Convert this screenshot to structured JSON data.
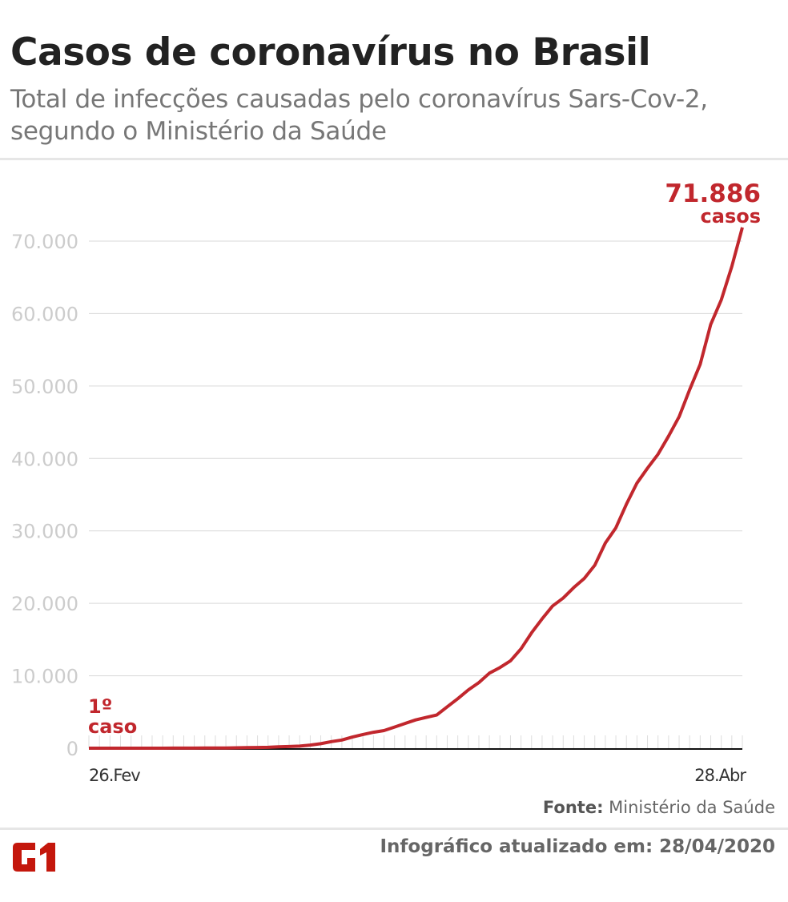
{
  "title": "Casos de coronavírus no Brasil",
  "subtitle": "Total de infecções causadas pelo coronavírus Sars-Cov-2, segundo o Ministério da Saúde",
  "footer": {
    "source_label": "Fonte:",
    "source": "Ministério da Saúde",
    "updated": "Infográfico atualizado em: 28/04/2020",
    "logo": "G1"
  },
  "colors": {
    "line": "#c1272d",
    "grid": "#d9d9d9",
    "axis_text": "#cccccc"
  },
  "chart_data": {
    "type": "line",
    "title": "Casos de coronavírus no Brasil",
    "x_start": "26.Fev",
    "x_end": "28.Abr",
    "x_tick_labels": [
      "26.Fev",
      "28.Abr"
    ],
    "ylim": [
      0,
      70000
    ],
    "y_ticks": [
      0,
      10000,
      20000,
      30000,
      40000,
      50000,
      60000,
      70000
    ],
    "y_tick_labels": [
      "0",
      "10.000",
      "20.000",
      "30.000",
      "40.000",
      "50.000",
      "60.000",
      "70.000"
    ],
    "grid": true,
    "annotations": {
      "first": [
        "1º",
        "caso"
      ],
      "last_value": "71.886",
      "last_unit": "casos"
    },
    "values": [
      1,
      1,
      1,
      2,
      2,
      2,
      2,
      3,
      8,
      13,
      19,
      25,
      25,
      34,
      52,
      77,
      98,
      121,
      200,
      234,
      291,
      428,
      621,
      904,
      1128,
      1546,
      1891,
      2201,
      2433,
      2915,
      3417,
      3904,
      4256,
      4579,
      5717,
      6836,
      8044,
      9056,
      10360,
      11130,
      12056,
      13717,
      15927,
      17857,
      19638,
      20727,
      22169,
      23430,
      25262,
      28320,
      30425,
      33682,
      36599,
      38654,
      40581,
      43079,
      45757,
      49492,
      52995,
      58509,
      61888,
      66501,
      71886
    ]
  }
}
